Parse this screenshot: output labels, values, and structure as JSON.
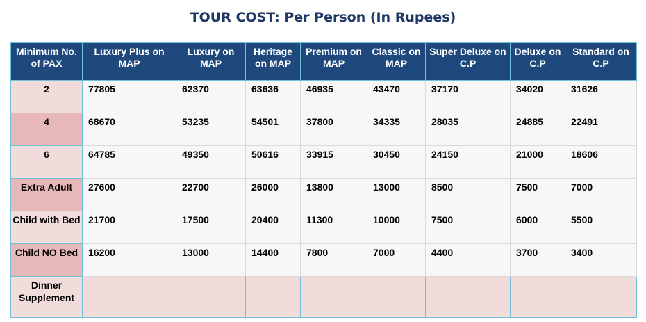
{
  "title": "TOUR COST: Per Person (In Rupees)",
  "headers": [
    "Minimum No. of PAX",
    "Luxury Plus on MAP",
    "Luxury on MAP",
    "Heritage on MAP",
    "Premium on MAP",
    "Classic on MAP",
    "Super Deluxe on C.P",
    "Deluxe on C.P",
    "Standard on C.P"
  ],
  "rows": [
    {
      "label": "2",
      "values": [
        "77805",
        "62370",
        "63636",
        "46935",
        "43470",
        "37170",
        "34020",
        "31626"
      ]
    },
    {
      "label": "4",
      "values": [
        "68670",
        "53235",
        "54501",
        "37800",
        "34335",
        "28035",
        "24885",
        "22491"
      ]
    },
    {
      "label": "6",
      "values": [
        "64785",
        "49350",
        "50616",
        "33915",
        "30450",
        "24150",
        "21000",
        "18606"
      ]
    },
    {
      "label": "Extra Adult",
      "values": [
        "27600",
        "22700",
        "26000",
        "13800",
        "13000",
        "8500",
        "7500",
        "7000"
      ]
    },
    {
      "label": "Child with Bed",
      "values": [
        "21700",
        "17500",
        "20400",
        "11300",
        "10000",
        "7500",
        "6000",
        "5500"
      ]
    },
    {
      "label": "Child NO Bed",
      "values": [
        "16200",
        "13000",
        "14400",
        "7800",
        "7000",
        "4400",
        "3700",
        "3400"
      ]
    },
    {
      "label": "Dinner Supplement",
      "values": [
        "",
        "",
        "",
        "",
        "",
        "",
        "",
        ""
      ]
    }
  ],
  "colors": {
    "header": "#1f497d",
    "label_light": "#f2dcdb",
    "label_dark": "#e6b8b7",
    "title": "#1f3864"
  }
}
